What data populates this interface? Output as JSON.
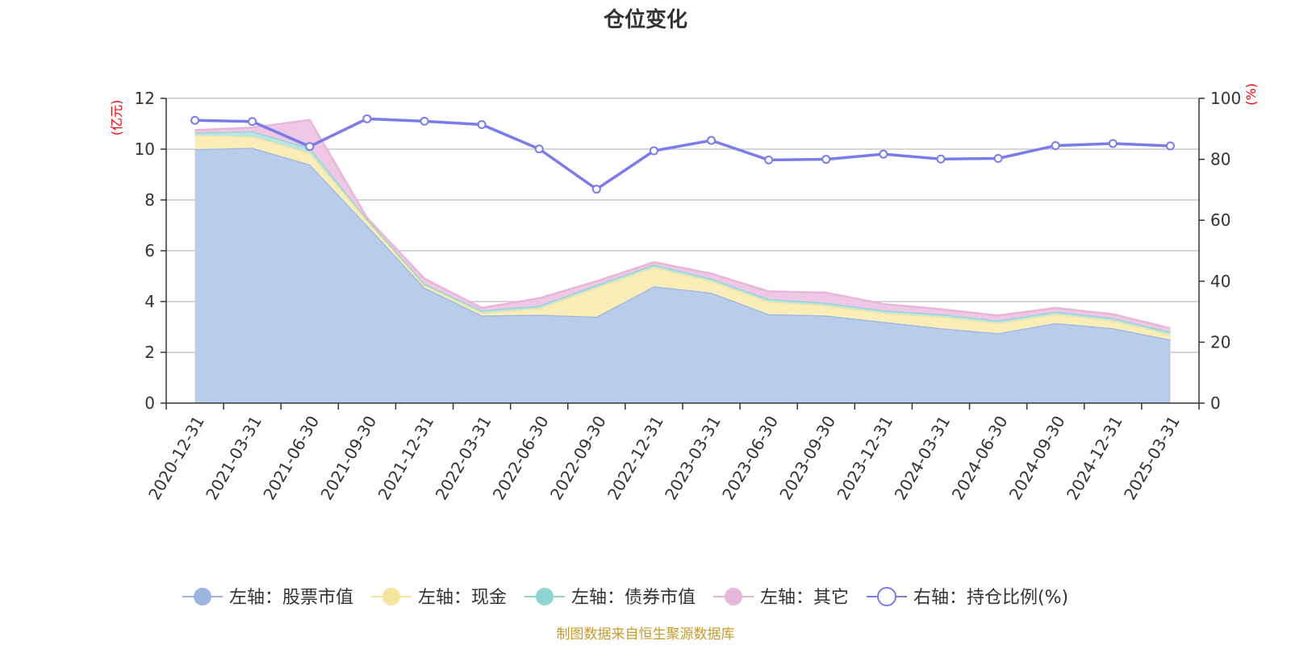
{
  "chart_data": {
    "type": "area",
    "title": "仓位变化",
    "left_axis_unit": "(亿元)",
    "right_axis_unit": "(%)",
    "categories": [
      "2020-12-31",
      "2021-03-31",
      "2021-06-30",
      "2021-09-30",
      "2021-12-31",
      "2022-03-31",
      "2022-06-30",
      "2022-09-30",
      "2022-12-31",
      "2023-03-31",
      "2023-06-30",
      "2023-09-30",
      "2023-12-31",
      "2024-03-31",
      "2024-06-30",
      "2024-09-30",
      "2024-12-31",
      "2025-03-31"
    ],
    "left_ylim": [
      0,
      12
    ],
    "left_yticks": [
      0,
      2,
      4,
      6,
      8,
      10,
      12
    ],
    "right_ylim": [
      0,
      100
    ],
    "right_yticks": [
      0,
      20,
      40,
      60,
      80,
      100
    ],
    "grid": true,
    "legend_position": "bottom",
    "stack_order": [
      "股票市值",
      "现金",
      "债券市值",
      "其它"
    ],
    "series": [
      {
        "name": "左轴：股票市值",
        "axis": "left",
        "kind": "area",
        "color": "#9ab6e0",
        "fill": "#b8cdea",
        "values": [
          10.0,
          10.05,
          9.4,
          7.0,
          4.55,
          3.45,
          3.48,
          3.4,
          4.6,
          4.35,
          3.5,
          3.45,
          3.2,
          2.95,
          2.75,
          3.15,
          2.95,
          2.5
        ]
      },
      {
        "name": "左轴：现金",
        "axis": "left",
        "kind": "area",
        "color": "#f5e49b",
        "fill": "#faedb8",
        "values": [
          0.55,
          0.45,
          0.45,
          0.2,
          0.1,
          0.1,
          0.25,
          1.15,
          0.75,
          0.45,
          0.5,
          0.4,
          0.35,
          0.45,
          0.4,
          0.35,
          0.3,
          0.2
        ]
      },
      {
        "name": "左轴：债券市值",
        "axis": "left",
        "kind": "area",
        "color": "#8fd4d2",
        "fill": "#b9e5e4",
        "values": [
          0.1,
          0.2,
          0.2,
          0.05,
          0.05,
          0.1,
          0.1,
          0.1,
          0.1,
          0.1,
          0.1,
          0.1,
          0.1,
          0.1,
          0.1,
          0.1,
          0.1,
          0.1
        ]
      },
      {
        "name": "左轴：其它",
        "axis": "left",
        "kind": "area",
        "color": "#e8b6db",
        "fill": "#efc8e5",
        "values": [
          0.1,
          0.15,
          1.1,
          0.05,
          0.2,
          0.1,
          0.3,
          0.15,
          0.1,
          0.2,
          0.3,
          0.4,
          0.25,
          0.2,
          0.2,
          0.15,
          0.15,
          0.15
        ]
      },
      {
        "name": "右轴：持仓比例(%)",
        "axis": "right",
        "kind": "line",
        "color": "#7b7cec",
        "values": [
          92.8,
          92.4,
          84.2,
          93.3,
          92.5,
          91.4,
          83.4,
          70.2,
          82.8,
          86.2,
          79.8,
          80.0,
          81.7,
          80.1,
          80.3,
          84.5,
          85.2,
          84.4
        ]
      }
    ],
    "source_note": "制图数据来自恒生聚源数据库"
  }
}
